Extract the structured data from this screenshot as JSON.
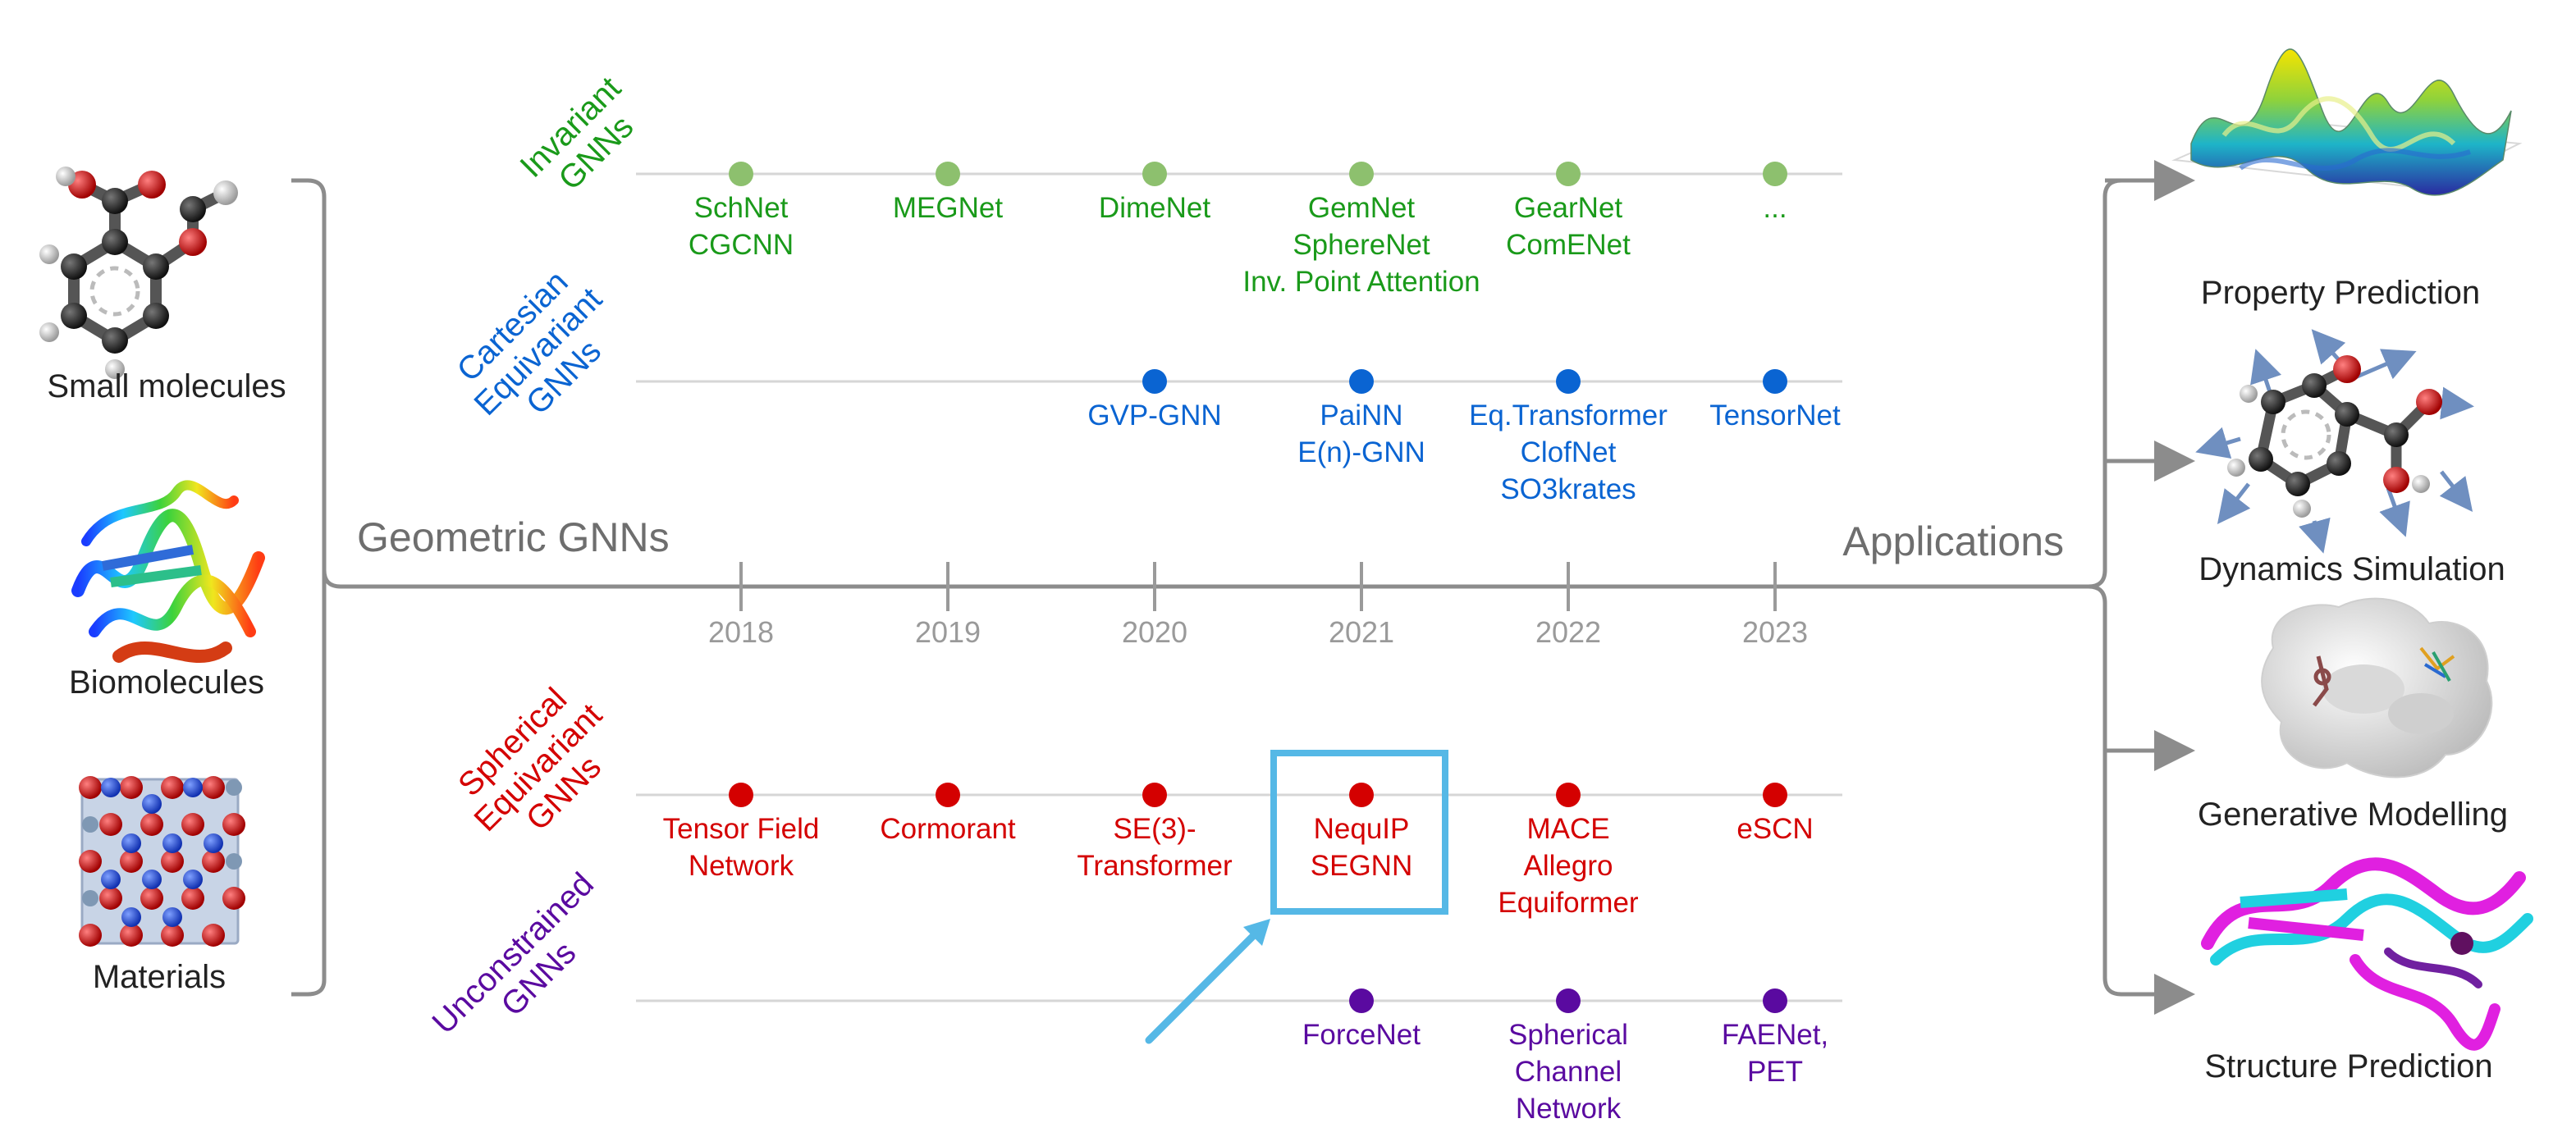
{
  "colors": {
    "invariant": "#1a9a1a",
    "invariant_dot": "#8dc06e",
    "cartesian": "#0a64d2",
    "spherical": "#d40000",
    "unconstrained": "#5a0aa0",
    "highlight": "#55b8e6",
    "frame": "#8c8c8c",
    "axis_text": "#9a9a9a",
    "section_text": "#6e6e6e",
    "black_text": "#222222"
  },
  "left_panel": {
    "items": [
      {
        "label": "Small molecules",
        "icon": "small-molecule-icon"
      },
      {
        "label": "Biomolecules",
        "icon": "protein-ribbon-icon"
      },
      {
        "label": "Materials",
        "icon": "crystal-lattice-icon"
      }
    ]
  },
  "center": {
    "geometric_title": "Geometric GNNs",
    "applications_title": "Applications",
    "years": [
      "2018",
      "2019",
      "2020",
      "2021",
      "2022",
      "2023"
    ],
    "rows": [
      {
        "key": "invariant",
        "label_lines": [
          "Invariant",
          "GNNs"
        ],
        "entries": [
          {
            "year": "2018",
            "lines": [
              "SchNet",
              "CGCNN"
            ]
          },
          {
            "year": "2019",
            "lines": [
              "MEGNet"
            ]
          },
          {
            "year": "2020",
            "lines": [
              "DimeNet"
            ]
          },
          {
            "year": "2021",
            "lines": [
              "GemNet",
              "SphereNet",
              "Inv. Point Attention"
            ]
          },
          {
            "year": "2022",
            "lines": [
              "GearNet",
              "ComENet"
            ]
          },
          {
            "year": "2023",
            "lines": [
              "..."
            ]
          }
        ]
      },
      {
        "key": "cartesian",
        "label_lines": [
          "Cartesian",
          "Equivariant",
          "GNNs"
        ],
        "entries": [
          {
            "year": "2020",
            "lines": [
              "GVP-GNN"
            ]
          },
          {
            "year": "2021",
            "lines": [
              "PaiNN",
              "E(n)-GNN"
            ]
          },
          {
            "year": "2022",
            "lines": [
              "Eq.Transformer",
              "ClofNet",
              "SO3krates"
            ]
          },
          {
            "year": "2023",
            "lines": [
              "TensorNet"
            ]
          }
        ]
      },
      {
        "key": "spherical",
        "label_lines": [
          "Spherical",
          "Equivariant",
          "GNNs"
        ],
        "entries": [
          {
            "year": "2018",
            "lines": [
              "Tensor Field",
              "Network"
            ]
          },
          {
            "year": "2019",
            "lines": [
              "Cormorant"
            ]
          },
          {
            "year": "2020",
            "lines": [
              "SE(3)-",
              "Transformer"
            ]
          },
          {
            "year": "2021",
            "lines": [
              "NequIP",
              "SEGNN"
            ],
            "highlighted": true
          },
          {
            "year": "2022",
            "lines": [
              "MACE",
              "Allegro",
              "Equiformer"
            ]
          },
          {
            "year": "2023",
            "lines": [
              "eSCN"
            ]
          }
        ]
      },
      {
        "key": "unconstrained",
        "label_lines": [
          "Unconstrained",
          "GNNs"
        ],
        "entries": [
          {
            "year": "2021",
            "lines": [
              "ForceNet"
            ]
          },
          {
            "year": "2022",
            "lines": [
              "Spherical",
              "Channel",
              "Network"
            ]
          },
          {
            "year": "2023",
            "lines": [
              "FAENet,",
              "PET"
            ]
          }
        ]
      }
    ]
  },
  "right_panel": {
    "items": [
      {
        "label": "Property Prediction",
        "icon": "energy-surface-icon"
      },
      {
        "label": "Dynamics Simulation",
        "icon": "molecule-forces-icon"
      },
      {
        "label": "Generative Modelling",
        "icon": "protein-surface-icon"
      },
      {
        "label": "Structure Prediction",
        "icon": "protein-structure-icon"
      }
    ]
  }
}
